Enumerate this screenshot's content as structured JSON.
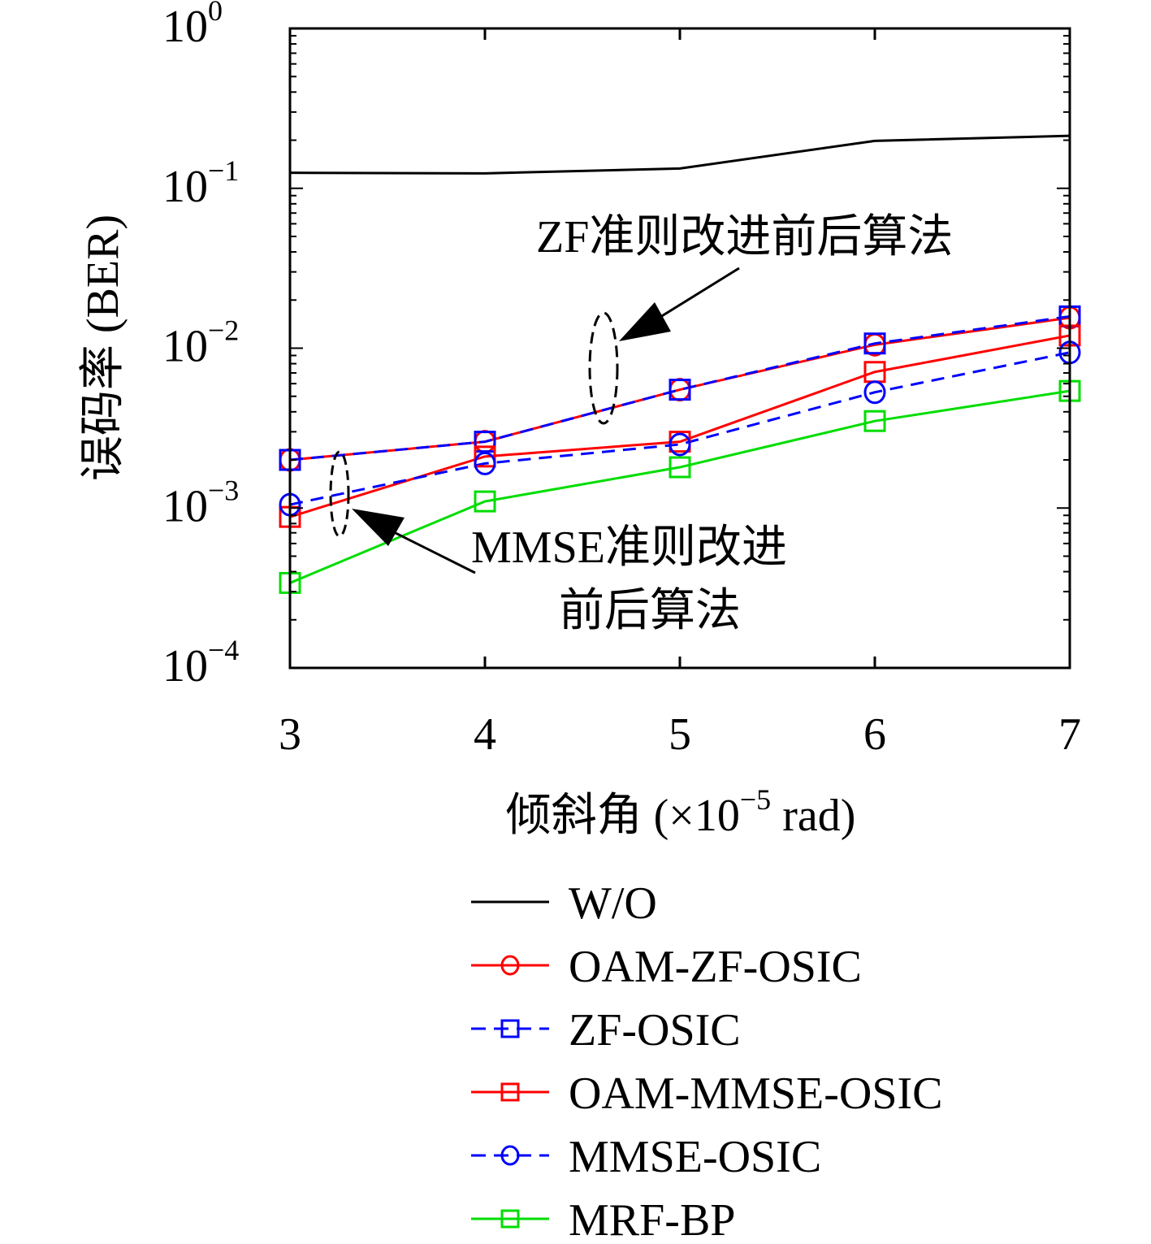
{
  "chart_data": {
    "type": "line",
    "title": "",
    "xlabel": "倾斜角 (×10⁻⁵ rad)",
    "xlabel_parts": {
      "prefix": "倾斜角 (×10",
      "exp": "−5",
      "suffix": " rad)"
    },
    "ylabel": "误码率 (BER)",
    "x": [
      3,
      4,
      5,
      6,
      7
    ],
    "xlim": [
      3,
      7
    ],
    "ylim": [
      0.0001,
      1
    ],
    "yscale": "log",
    "grid": false,
    "legend_position": "bottom",
    "yticks": [
      {
        "value": 1,
        "base": "10",
        "exp": "0"
      },
      {
        "value": 0.1,
        "base": "10",
        "exp": "−1"
      },
      {
        "value": 0.01,
        "base": "10",
        "exp": "−2"
      },
      {
        "value": 0.001,
        "base": "10",
        "exp": "−3"
      },
      {
        "value": 0.0001,
        "base": "10",
        "exp": "−4"
      }
    ],
    "series": [
      {
        "name": "W/O",
        "color": "#000000",
        "dash": false,
        "marker": "none",
        "values": [
          0.125,
          0.124,
          0.133,
          0.198,
          0.213
        ]
      },
      {
        "name": "OAM-ZF-OSIC",
        "color": "#ff0000",
        "dash": false,
        "marker": "circle",
        "values": [
          0.002,
          0.0026,
          0.0055,
          0.0105,
          0.0155
        ]
      },
      {
        "name": "ZF-OSIC",
        "color": "#0000ff",
        "dash": true,
        "marker": "square",
        "values": [
          0.002,
          0.0026,
          0.0055,
          0.0107,
          0.0158
        ]
      },
      {
        "name": "OAM-MMSE-OSIC",
        "color": "#ff0000",
        "dash": false,
        "marker": "square",
        "values": [
          0.00088,
          0.0021,
          0.0026,
          0.0071,
          0.012
        ]
      },
      {
        "name": "MMSE-OSIC",
        "color": "#0000ff",
        "dash": true,
        "marker": "circle",
        "values": [
          0.00105,
          0.0019,
          0.0025,
          0.0053,
          0.0094
        ]
      },
      {
        "name": "MRF-BP",
        "color": "#00dd00",
        "dash": false,
        "marker": "square",
        "values": [
          0.00034,
          0.0011,
          0.0018,
          0.0035,
          0.0054
        ]
      }
    ],
    "annotations": [
      {
        "lines": [
          "ZF准则改进前后算法"
        ]
      },
      {
        "lines": [
          "MMSE准则改进",
          "前后算法"
        ]
      }
    ]
  }
}
